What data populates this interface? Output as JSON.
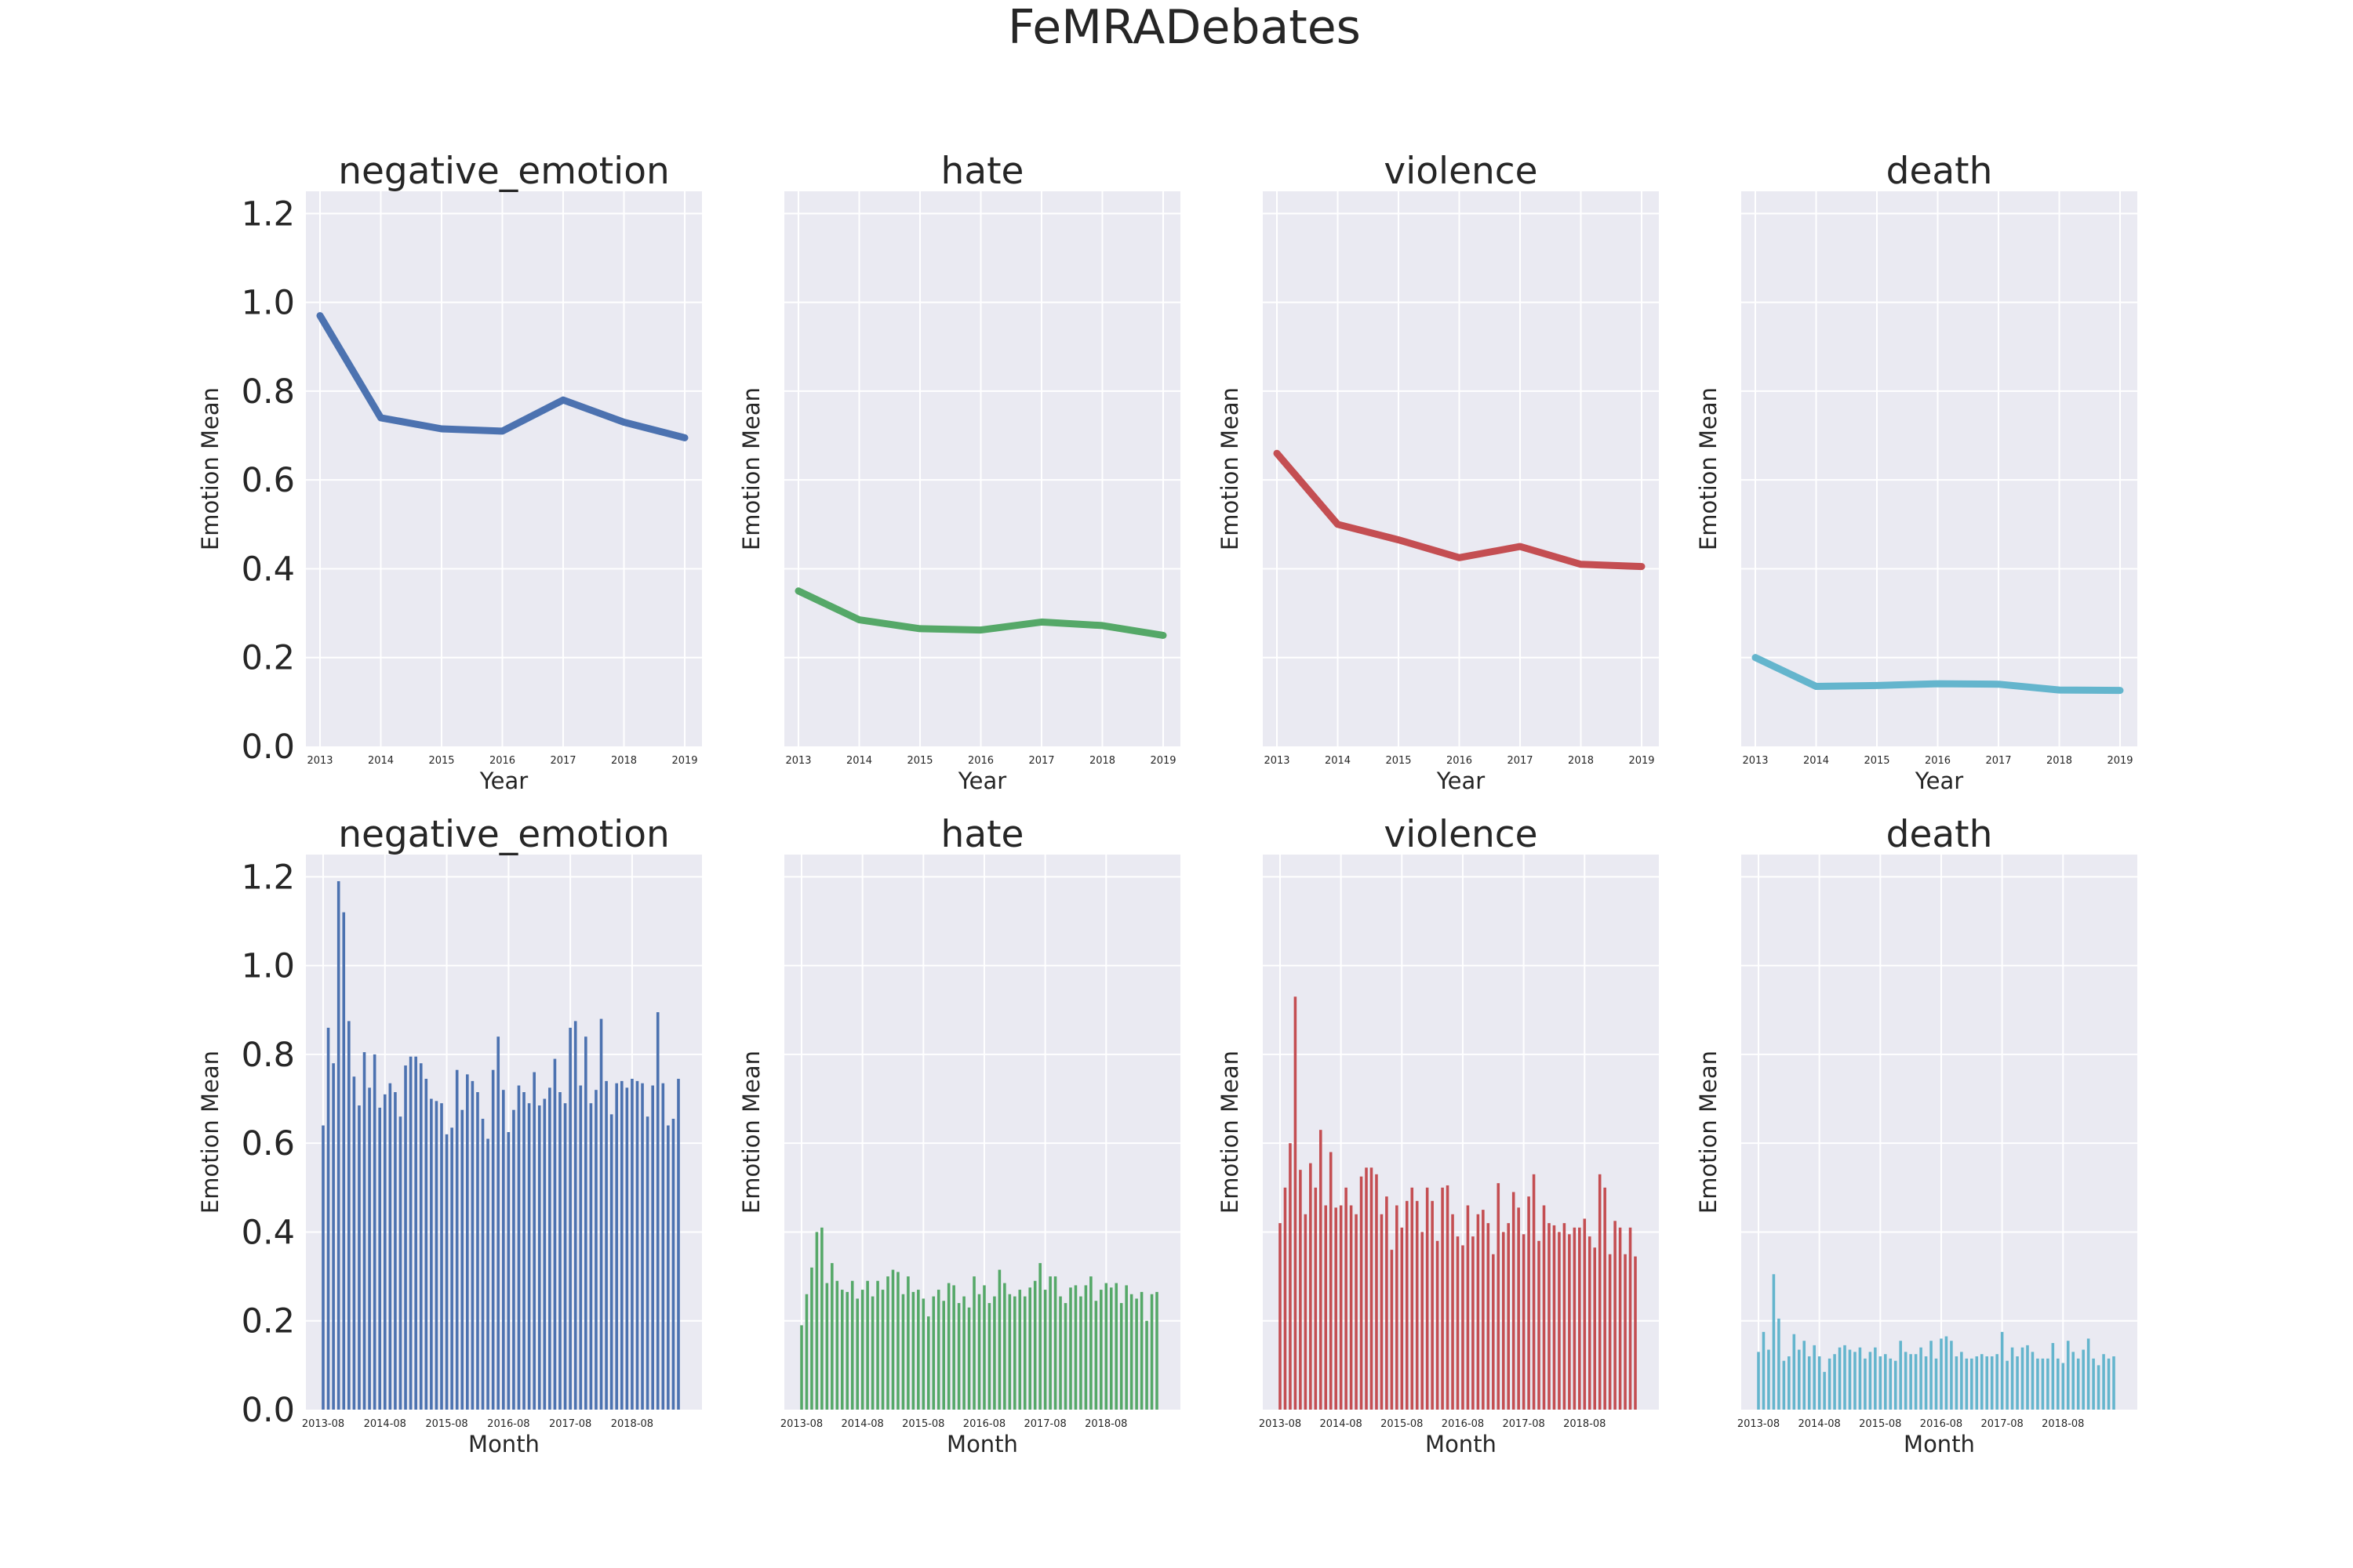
{
  "figure": {
    "title": "FeMRADebates"
  },
  "chart_data": [
    {
      "type": "line",
      "title": "negative_emotion",
      "xlabel": "Year",
      "ylabel": "Emotion Mean",
      "color": "#4c72b0",
      "ylim": [
        0,
        1.25
      ],
      "grid": true,
      "yticks": [
        0.0,
        0.2,
        0.4,
        0.6,
        0.8,
        1.0,
        1.2
      ],
      "yticklabels": [
        "0.0",
        "0.2",
        "0.4",
        "0.6",
        "0.8",
        "1.0",
        "1.2"
      ],
      "x": [
        "2013",
        "2014",
        "2015",
        "2016",
        "2017",
        "2018",
        "2019"
      ],
      "values": [
        0.97,
        0.74,
        0.715,
        0.71,
        0.78,
        0.73,
        0.695
      ]
    },
    {
      "type": "line",
      "title": "hate",
      "xlabel": "Year",
      "ylabel": "Emotion Mean",
      "color": "#55a868",
      "ylim": [
        0,
        1.25
      ],
      "grid": true,
      "x": [
        "2013",
        "2014",
        "2015",
        "2016",
        "2017",
        "2018",
        "2019"
      ],
      "values": [
        0.35,
        0.285,
        0.265,
        0.262,
        0.28,
        0.272,
        0.25
      ]
    },
    {
      "type": "line",
      "title": "violence",
      "xlabel": "Year",
      "ylabel": "Emotion Mean",
      "color": "#c44e52",
      "ylim": [
        0,
        1.25
      ],
      "grid": true,
      "x": [
        "2013",
        "2014",
        "2015",
        "2016",
        "2017",
        "2018",
        "2019"
      ],
      "values": [
        0.66,
        0.5,
        0.465,
        0.425,
        0.45,
        0.41,
        0.405
      ]
    },
    {
      "type": "line",
      "title": "death",
      "xlabel": "Year",
      "ylabel": "Emotion Mean",
      "color": "#64b5cd",
      "ylim": [
        0,
        1.25
      ],
      "grid": true,
      "x": [
        "2013",
        "2014",
        "2015",
        "2016",
        "2017",
        "2018",
        "2019"
      ],
      "values": [
        0.2,
        0.135,
        0.137,
        0.141,
        0.14,
        0.127,
        0.126
      ]
    },
    {
      "type": "bar",
      "title": "negative_emotion",
      "xlabel": "Month",
      "ylabel": "Emotion Mean",
      "color": "#4c72b0",
      "ylim": [
        0,
        1.25
      ],
      "grid": true,
      "yticks": [
        0.0,
        0.2,
        0.4,
        0.6,
        0.8,
        1.0,
        1.2
      ],
      "yticklabels": [
        "0.0",
        "0.2",
        "0.4",
        "0.6",
        "0.8",
        "1.0",
        "1.2"
      ],
      "xticklabels": [
        "2013-08",
        "2014-08",
        "2015-08",
        "2016-08",
        "2017-08",
        "2018-08"
      ],
      "start_month": "2013-08",
      "values": [
        0.64,
        0.86,
        0.78,
        1.19,
        1.12,
        0.875,
        0.75,
        0.685,
        0.805,
        0.725,
        0.8,
        0.68,
        0.71,
        0.735,
        0.715,
        0.66,
        0.775,
        0.795,
        0.795,
        0.78,
        0.745,
        0.7,
        0.695,
        0.69,
        0.62,
        0.635,
        0.765,
        0.675,
        0.755,
        0.74,
        0.715,
        0.655,
        0.61,
        0.765,
        0.84,
        0.72,
        0.625,
        0.675,
        0.73,
        0.715,
        0.69,
        0.76,
        0.685,
        0.7,
        0.725,
        0.79,
        0.715,
        0.69,
        0.86,
        0.875,
        0.73,
        0.84,
        0.69,
        0.72,
        0.88,
        0.74,
        0.665,
        0.735,
        0.74,
        0.725,
        0.745,
        0.74,
        0.735,
        0.66,
        0.73,
        0.895,
        0.735,
        0.64,
        0.655,
        0.745
      ]
    },
    {
      "type": "bar",
      "title": "hate",
      "xlabel": "Month",
      "ylabel": "Emotion Mean",
      "color": "#55a868",
      "ylim": [
        0,
        1.25
      ],
      "grid": true,
      "xticklabels": [
        "2013-08",
        "2014-08",
        "2015-08",
        "2016-08",
        "2017-08",
        "2018-08"
      ],
      "start_month": "2013-08",
      "values": [
        0.19,
        0.26,
        0.32,
        0.4,
        0.41,
        0.285,
        0.33,
        0.29,
        0.27,
        0.265,
        0.29,
        0.25,
        0.27,
        0.29,
        0.255,
        0.29,
        0.27,
        0.3,
        0.315,
        0.31,
        0.26,
        0.3,
        0.265,
        0.27,
        0.25,
        0.21,
        0.255,
        0.27,
        0.245,
        0.285,
        0.28,
        0.24,
        0.255,
        0.23,
        0.3,
        0.26,
        0.28,
        0.24,
        0.255,
        0.315,
        0.285,
        0.26,
        0.255,
        0.27,
        0.255,
        0.275,
        0.29,
        0.33,
        0.27,
        0.3,
        0.3,
        0.255,
        0.24,
        0.275,
        0.28,
        0.255,
        0.28,
        0.3,
        0.245,
        0.27,
        0.285,
        0.275,
        0.285,
        0.24,
        0.28,
        0.26,
        0.25,
        0.265,
        0.2,
        0.26,
        0.265
      ]
    },
    {
      "type": "bar",
      "title": "violence",
      "xlabel": "Month",
      "ylabel": "Emotion Mean",
      "color": "#c44e52",
      "ylim": [
        0,
        1.25
      ],
      "grid": true,
      "xticklabels": [
        "2013-08",
        "2014-08",
        "2015-08",
        "2016-08",
        "2017-08",
        "2018-08"
      ],
      "start_month": "2013-08",
      "values": [
        0.42,
        0.5,
        0.6,
        0.93,
        0.54,
        0.44,
        0.555,
        0.5,
        0.63,
        0.46,
        0.58,
        0.455,
        0.46,
        0.5,
        0.46,
        0.44,
        0.525,
        0.545,
        0.545,
        0.53,
        0.44,
        0.48,
        0.36,
        0.46,
        0.41,
        0.47,
        0.5,
        0.47,
        0.4,
        0.5,
        0.47,
        0.38,
        0.5,
        0.505,
        0.44,
        0.39,
        0.37,
        0.46,
        0.39,
        0.44,
        0.45,
        0.42,
        0.35,
        0.51,
        0.4,
        0.42,
        0.49,
        0.455,
        0.395,
        0.48,
        0.53,
        0.38,
        0.46,
        0.42,
        0.415,
        0.4,
        0.42,
        0.395,
        0.41,
        0.41,
        0.43,
        0.39,
        0.365,
        0.53,
        0.5,
        0.35,
        0.425,
        0.41,
        0.35,
        0.41,
        0.345
      ]
    },
    {
      "type": "bar",
      "title": "death",
      "xlabel": "Month",
      "ylabel": "Emotion Mean",
      "color": "#64b5cd",
      "ylim": [
        0,
        1.25
      ],
      "grid": true,
      "xticklabels": [
        "2013-08",
        "2014-08",
        "2015-08",
        "2016-08",
        "2017-08",
        "2018-08"
      ],
      "start_month": "2013-08",
      "values": [
        0.13,
        0.175,
        0.135,
        0.305,
        0.205,
        0.11,
        0.12,
        0.17,
        0.135,
        0.155,
        0.12,
        0.145,
        0.12,
        0.085,
        0.115,
        0.125,
        0.14,
        0.145,
        0.135,
        0.13,
        0.14,
        0.115,
        0.13,
        0.14,
        0.12,
        0.125,
        0.115,
        0.11,
        0.155,
        0.13,
        0.125,
        0.125,
        0.14,
        0.12,
        0.155,
        0.115,
        0.16,
        0.165,
        0.155,
        0.12,
        0.13,
        0.115,
        0.115,
        0.12,
        0.125,
        0.12,
        0.12,
        0.125,
        0.175,
        0.11,
        0.14,
        0.12,
        0.14,
        0.145,
        0.13,
        0.115,
        0.115,
        0.115,
        0.15,
        0.115,
        0.105,
        0.155,
        0.13,
        0.115,
        0.135,
        0.16,
        0.115,
        0.1,
        0.125,
        0.115,
        0.12
      ]
    }
  ]
}
